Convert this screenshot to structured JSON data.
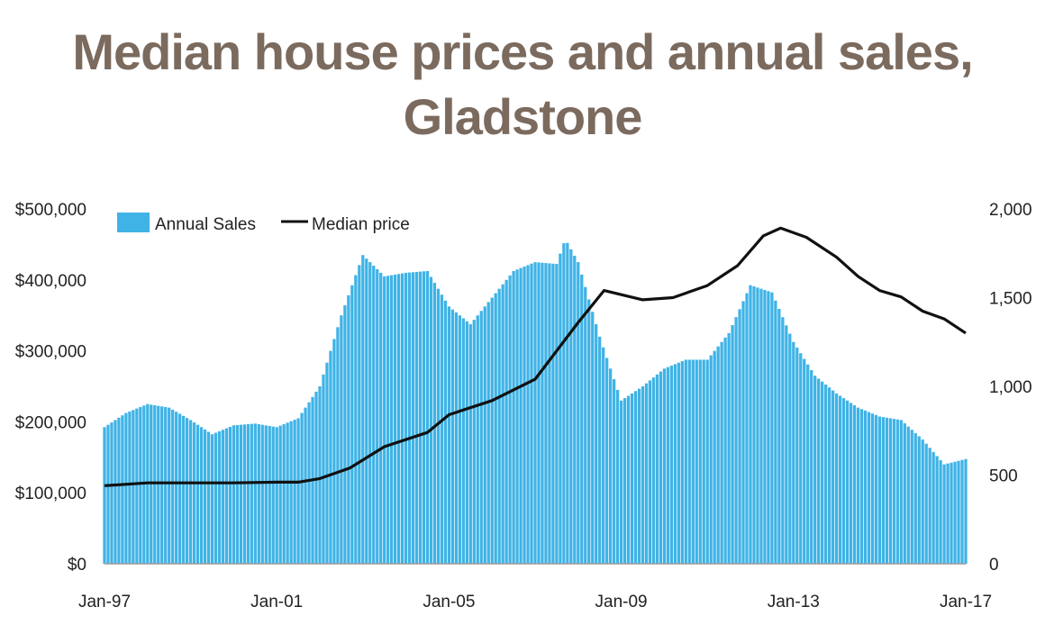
{
  "title_lines": [
    "Median house prices and annual sales,",
    "Gladstone"
  ],
  "chart_data": {
    "type": "bar+line",
    "x_ticks": [
      "Jan-97",
      "Jan-01",
      "Jan-05",
      "Jan-09",
      "Jan-13",
      "Jan-17"
    ],
    "x_range_years": [
      1997,
      2017
    ],
    "y_left": {
      "ticks": [
        "$0",
        "$100,000",
        "$200,000",
        "$300,000",
        "$400,000",
        "$500,000"
      ],
      "range": [
        0,
        500000
      ]
    },
    "y_right": {
      "ticks": [
        "0",
        "500",
        "1,000",
        "1,500",
        "2,000"
      ],
      "range": [
        0,
        2000
      ]
    },
    "legend": [
      {
        "name": "Annual Sales",
        "color": "#3fb3e6",
        "marker": "bar"
      },
      {
        "name": "Median price",
        "color": "#111111",
        "marker": "line"
      }
    ],
    "series": [
      {
        "name": "Annual Sales",
        "axis": "right",
        "kind": "bar",
        "color": "#3fb3e6",
        "points": [
          [
            1997.0,
            770
          ],
          [
            1997.5,
            850
          ],
          [
            1998.0,
            900
          ],
          [
            1998.5,
            880
          ],
          [
            1999.0,
            810
          ],
          [
            1999.5,
            730
          ],
          [
            2000.0,
            780
          ],
          [
            2000.5,
            790
          ],
          [
            2001.0,
            770
          ],
          [
            2001.5,
            820
          ],
          [
            2002.0,
            1000
          ],
          [
            2002.5,
            1400
          ],
          [
            2003.0,
            1740
          ],
          [
            2003.5,
            1620
          ],
          [
            2004.0,
            1640
          ],
          [
            2004.5,
            1650
          ],
          [
            2005.0,
            1450
          ],
          [
            2005.5,
            1350
          ],
          [
            2006.0,
            1500
          ],
          [
            2006.5,
            1650
          ],
          [
            2007.0,
            1700
          ],
          [
            2007.5,
            1690
          ],
          [
            2007.7,
            1830
          ],
          [
            2008.0,
            1700
          ],
          [
            2008.5,
            1280
          ],
          [
            2009.0,
            920
          ],
          [
            2009.5,
            1000
          ],
          [
            2010.0,
            1100
          ],
          [
            2010.5,
            1150
          ],
          [
            2011.0,
            1150
          ],
          [
            2011.5,
            1300
          ],
          [
            2012.0,
            1570
          ],
          [
            2012.5,
            1530
          ],
          [
            2013.0,
            1250
          ],
          [
            2013.5,
            1060
          ],
          [
            2014.0,
            960
          ],
          [
            2014.5,
            880
          ],
          [
            2015.0,
            830
          ],
          [
            2015.5,
            810
          ],
          [
            2016.0,
            700
          ],
          [
            2016.5,
            560
          ],
          [
            2017.0,
            590
          ]
        ]
      },
      {
        "name": "Median price",
        "axis": "left",
        "kind": "line",
        "color": "#111111",
        "points": [
          [
            1997.0,
            110000
          ],
          [
            1998.0,
            114000
          ],
          [
            1999.0,
            114000
          ],
          [
            2000.0,
            114000
          ],
          [
            2001.0,
            115000
          ],
          [
            2001.5,
            115000
          ],
          [
            2002.0,
            120000
          ],
          [
            2002.7,
            135000
          ],
          [
            2003.5,
            165000
          ],
          [
            2004.5,
            185000
          ],
          [
            2005.0,
            210000
          ],
          [
            2006.0,
            230000
          ],
          [
            2007.0,
            260000
          ],
          [
            2007.5,
            300000
          ],
          [
            2008.0,
            340000
          ],
          [
            2008.6,
            385000
          ],
          [
            2009.5,
            372000
          ],
          [
            2010.2,
            375000
          ],
          [
            2011.0,
            392000
          ],
          [
            2011.7,
            420000
          ],
          [
            2012.3,
            462000
          ],
          [
            2012.7,
            473000
          ],
          [
            2013.3,
            460000
          ],
          [
            2014.0,
            432000
          ],
          [
            2014.5,
            405000
          ],
          [
            2015.0,
            385000
          ],
          [
            2015.5,
            376000
          ],
          [
            2016.0,
            356000
          ],
          [
            2016.5,
            345000
          ],
          [
            2017.0,
            325000
          ]
        ]
      }
    ]
  }
}
